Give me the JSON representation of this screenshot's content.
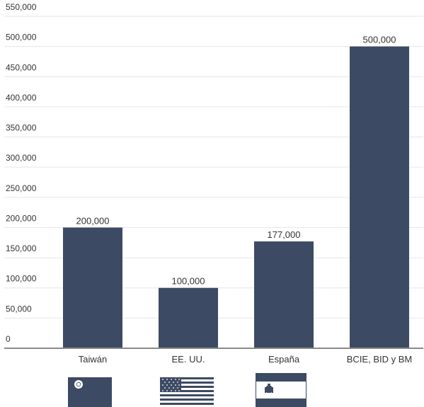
{
  "chart_data": {
    "type": "bar",
    "categories": [
      "Taiwán",
      "EE. UU.",
      "España",
      "BCIE, BID y BM"
    ],
    "values": [
      200000,
      100000,
      177000,
      500000
    ],
    "data_labels": [
      "200,000",
      "100,000",
      "177,000",
      "500,000"
    ],
    "ylim": [
      0,
      550000
    ],
    "yticks": [
      0,
      50000,
      100000,
      150000,
      200000,
      250000,
      300000,
      350000,
      400000,
      450000,
      500000,
      550000
    ],
    "ytick_labels": [
      "0",
      "50,000",
      "100,000",
      "150,000",
      "200,000",
      "250,000",
      "300,000",
      "350,000",
      "400,000",
      "450,000",
      "500,000",
      "550,000"
    ],
    "grid": true,
    "bar_color": "#3d4a63",
    "grid_color": "#e6e6e6",
    "axis_color": "#8a8a8a",
    "text_color": "#333333"
  },
  "flags": [
    {
      "category": "Taiwán",
      "icon": "taiwan-flag-icon"
    },
    {
      "category": "EE. UU.",
      "icon": "usa-flag-icon"
    },
    {
      "category": "España",
      "icon": "spain-flag-icon"
    }
  ]
}
